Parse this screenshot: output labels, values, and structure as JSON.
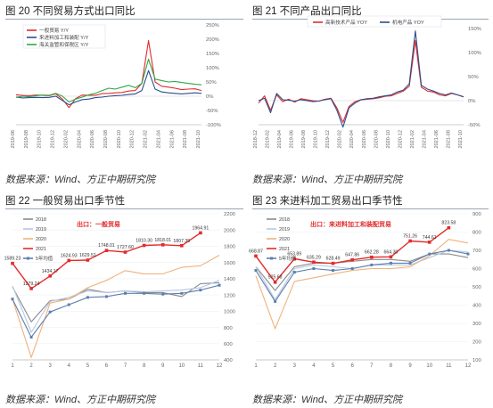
{
  "figures": [
    {
      "caption": "图 20 不同贸易方式出口同比",
      "source": "数据来源：Wind、方正中期研究院"
    },
    {
      "caption": "图 21 不同产品出口同比",
      "source": "数据来源：Wind、方正中期研究院"
    },
    {
      "caption": "图 22 一般贸易出口季节性",
      "source": "数据来源：Wind、方正中期研究院"
    },
    {
      "caption": "图 23 来进料加工贸易出口季节性",
      "source": "数据来源：Wind、方正中期研究院"
    }
  ],
  "chart_data": [
    {
      "type": "line",
      "x": [
        "2019-06",
        "2019-07",
        "2019-08",
        "2019-09",
        "2019-10",
        "2019-11",
        "2019-12",
        "2020-01",
        "2020-02",
        "2020-03",
        "2020-04",
        "2020-05",
        "2020-06",
        "2020-07",
        "2020-08",
        "2020-09",
        "2020-10",
        "2020-11",
        "2020-12",
        "2021-01",
        "2021-02",
        "2021-03",
        "2021-04",
        "2021-05",
        "2021-06",
        "2021-07",
        "2021-08",
        "2021-09",
        "2021-10"
      ],
      "x_ticks": [
        "2019-06",
        "2019-08",
        "2019-10",
        "2019-12",
        "2020-02",
        "2020-04",
        "2020-06",
        "2020-08",
        "2020-10",
        "2020-12",
        "2021-02",
        "2021-04",
        "2021-06",
        "2021-08",
        "2021-10"
      ],
      "series": [
        {
          "name": "一般贸易 Y/Y",
          "color": "#e32b2b",
          "values": [
            5,
            3,
            2,
            4,
            3,
            2,
            8,
            -10,
            -40,
            -8,
            4,
            3,
            3,
            9,
            10,
            12,
            13,
            18,
            20,
            45,
            195,
            50,
            35,
            32,
            28,
            23,
            25,
            26,
            20
          ]
        },
        {
          "name": "来进料加工和装配 Y/Y",
          "color": "#2b4e8c",
          "values": [
            -3,
            -6,
            -5,
            -4,
            -5,
            -4,
            0,
            -15,
            -30,
            -20,
            -12,
            -10,
            -5,
            -3,
            0,
            2,
            3,
            6,
            8,
            20,
            90,
            25,
            15,
            12,
            10,
            8,
            10,
            12,
            10
          ]
        },
        {
          "name": "海关监管和保税区 Y/Y",
          "color": "#2ea84a",
          "values": [
            -4,
            0,
            -2,
            2,
            4,
            3,
            10,
            0,
            -20,
            -10,
            -3,
            5,
            10,
            20,
            28,
            25,
            32,
            38,
            30,
            45,
            130,
            60,
            55,
            50,
            52,
            48,
            45,
            42,
            40
          ]
        }
      ],
      "ylim": [
        -100,
        250
      ],
      "yticks": [
        "-100%",
        "-50%",
        "0%",
        "50%",
        "100%",
        "150%",
        "200%",
        "250%"
      ]
    },
    {
      "type": "line",
      "x": [
        "2018-12",
        "2019-01",
        "2019-02",
        "2019-03",
        "2019-04",
        "2019-05",
        "2019-06",
        "2019-07",
        "2019-08",
        "2019-09",
        "2019-10",
        "2019-11",
        "2019-12",
        "2020-01",
        "2020-02",
        "2020-03",
        "2020-04",
        "2020-05",
        "2020-06",
        "2020-07",
        "2020-08",
        "2020-09",
        "2020-10",
        "2020-11",
        "2020-12",
        "2021-01",
        "2021-02",
        "2021-03",
        "2021-04",
        "2021-05",
        "2021-06",
        "2021-07",
        "2021-08",
        "2021-09",
        "2021-10"
      ],
      "x_ticks": [
        "2018-12",
        "2019-02",
        "2019-04",
        "2019-06",
        "2019-08",
        "2019-10",
        "2019-12",
        "2020-02",
        "2020-04",
        "2020-06",
        "2020-08",
        "2020-10",
        "2020-12",
        "2021-02",
        "2021-04",
        "2021-06",
        "2021-08",
        "2021-10"
      ],
      "series": [
        {
          "name": "高新技术产品 YOY",
          "color": "#e32b2b",
          "values": [
            -5,
            10,
            -20,
            12,
            -2,
            3,
            -3,
            4,
            2,
            0,
            -1,
            3,
            5,
            -15,
            -45,
            -12,
            -2,
            2,
            3,
            4,
            6,
            9,
            10,
            15,
            20,
            30,
            125,
            28,
            20,
            18,
            12,
            10,
            15,
            12,
            8
          ]
        },
        {
          "name": "机电产品 YOY",
          "color": "#2b4e8c",
          "values": [
            0,
            5,
            -25,
            15,
            2,
            1,
            -1,
            2,
            0,
            -2,
            -1,
            2,
            4,
            -20,
            -55,
            -15,
            -5,
            2,
            4,
            5,
            8,
            10,
            12,
            18,
            22,
            35,
            145,
            32,
            24,
            20,
            15,
            12,
            16,
            12,
            8
          ]
        }
      ],
      "ylim": [
        -50,
        150
      ],
      "yticks": [
        "-50%",
        "0%",
        "50%",
        "100%",
        "150%"
      ]
    },
    {
      "type": "line",
      "categories": [
        "1",
        "2",
        "3",
        "4",
        "5",
        "6",
        "7",
        "8",
        "9",
        "10",
        "11",
        "12"
      ],
      "series": [
        {
          "name": "2018",
          "color": "#8a8a8a",
          "values": [
            1300,
            870,
            1130,
            1150,
            1270,
            1230,
            1250,
            1230,
            1230,
            1180,
            1340,
            1350
          ]
        },
        {
          "name": "2019",
          "color": "#b8c7e0",
          "values": [
            1310,
            740,
            1120,
            1170,
            1250,
            1230,
            1250,
            1240,
            1250,
            1260,
            1290,
            1380
          ]
        },
        {
          "name": "2020",
          "color": "#f0b27a",
          "values": [
            1150,
            430,
            1100,
            1150,
            1290,
            1380,
            1500,
            1460,
            1460,
            1540,
            1560,
            1690
          ]
        },
        {
          "name": "2021",
          "color": "#e32b2b",
          "values": [
            1589.23,
            1279.24,
            1434.17,
            1624.93,
            1629.51,
            1748.01,
            1727.6,
            1810.3,
            1818.01,
            1807.39,
            1964.91,
            null
          ]
        },
        {
          "name": "5年均值",
          "color": "#5b7fb0",
          "values": [
            1150,
            680,
            990,
            1080,
            1170,
            1180,
            1220,
            1220,
            1210,
            1220,
            1260,
            1320
          ]
        }
      ],
      "data_labels": [
        "1589.23",
        "1279.24",
        "1434.17",
        "1624.93",
        "1629.51",
        "1748.01",
        "1727.60",
        "1810.30",
        "1818.01",
        "1807.39",
        "1964.91"
      ],
      "annotation": "出口：一般贸易",
      "ylim": [
        400,
        2200
      ],
      "yticks": [
        "400",
        "600",
        "800",
        "1000",
        "1200",
        "1400",
        "1600",
        "1800",
        "2000",
        "2200"
      ]
    },
    {
      "type": "line",
      "categories": [
        "1",
        "2",
        "3",
        "4",
        "5",
        "6",
        "7",
        "8",
        "9",
        "10",
        "11",
        "12"
      ],
      "series": [
        {
          "name": "2018",
          "color": "#8a8a8a",
          "values": [
            610,
            480,
            610,
            630,
            630,
            640,
            650,
            650,
            640,
            680,
            680,
            660
          ]
        },
        {
          "name": "2019",
          "color": "#b8c7e0",
          "values": [
            610,
            430,
            600,
            620,
            610,
            600,
            620,
            620,
            620,
            660,
            700,
            690
          ]
        },
        {
          "name": "2020",
          "color": "#f0b27a",
          "values": [
            560,
            270,
            530,
            550,
            570,
            590,
            600,
            600,
            610,
            670,
            760,
            740
          ]
        },
        {
          "name": "2021",
          "color": "#e32b2b",
          "values": [
            668.87,
            525.68,
            653.89,
            635.29,
            628.49,
            647.86,
            662.28,
            664.3,
            751.26,
            744.61,
            823.58,
            null
          ]
        },
        {
          "name": "5年均值",
          "color": "#5b7fb0",
          "values": [
            590,
            420,
            580,
            600,
            590,
            600,
            620,
            630,
            630,
            680,
            700,
            680
          ]
        }
      ],
      "data_labels": [
        "668.87",
        "525.68",
        "653.89",
        "635.29",
        "628.49",
        "647.86",
        "662.28",
        "664.30",
        "751.26",
        "744.61",
        "823.58"
      ],
      "annotation": "出口：来进料加工和装配贸易",
      "ylim": [
        100,
        900
      ],
      "yticks": [
        "100",
        "200",
        "300",
        "400",
        "500",
        "600",
        "700",
        "800",
        "900"
      ]
    }
  ]
}
